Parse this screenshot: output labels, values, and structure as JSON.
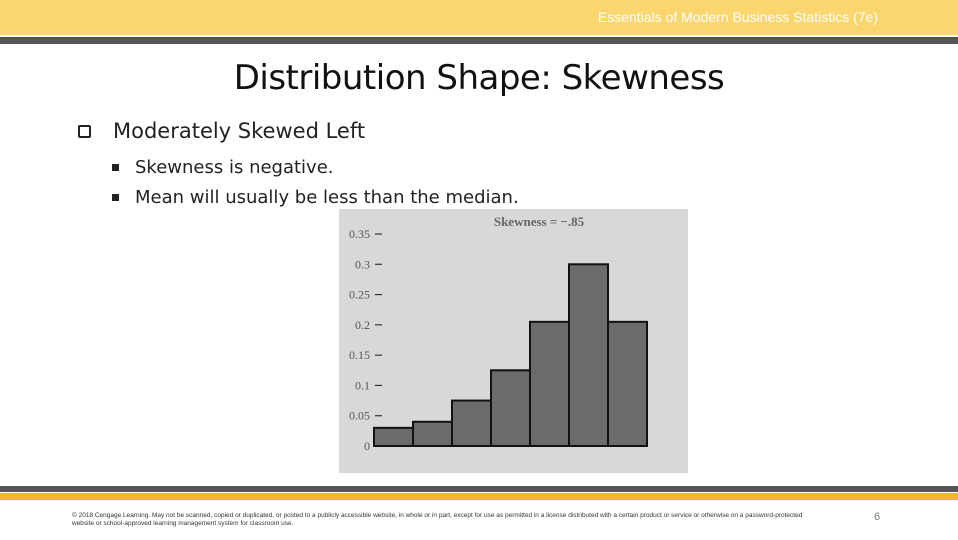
{
  "header": {
    "course_title": "Essentials of Modern Business Statistics (7e)"
  },
  "slide": {
    "title": "Distribution Shape:  Skewness",
    "bullet": "Moderately Skewed Left",
    "sub_bullets": [
      "Skewness is negative.",
      "Mean will usually be less than the median."
    ]
  },
  "chart_data": {
    "type": "bar",
    "annotation": "Skewness = −.85",
    "values": [
      0.03,
      0.04,
      0.075,
      0.125,
      0.205,
      0.3,
      0.205
    ],
    "ylim": [
      0,
      0.35
    ],
    "yticks": [
      "0",
      "0.05",
      "0.1",
      "0.15",
      "0.2",
      "0.25",
      "0.3",
      "0.35"
    ],
    "grid": false,
    "bar_color": "#6b6b6b",
    "background_color": "#d8d8d8"
  },
  "footer": {
    "copyright": "© 2018 Cengage Learning. May not be scanned, copied or duplicated, or posted to a publicly accessible website, in whole or in part, except for use as permitted in a license distributed with a certain product or service or otherwise on a password-protected website or school-approved learning management system for classroom use.",
    "page_number": "6"
  },
  "colors": {
    "top_band": "#fbd66f",
    "accent_line": "#f5b533",
    "dark_line": "#555555"
  }
}
